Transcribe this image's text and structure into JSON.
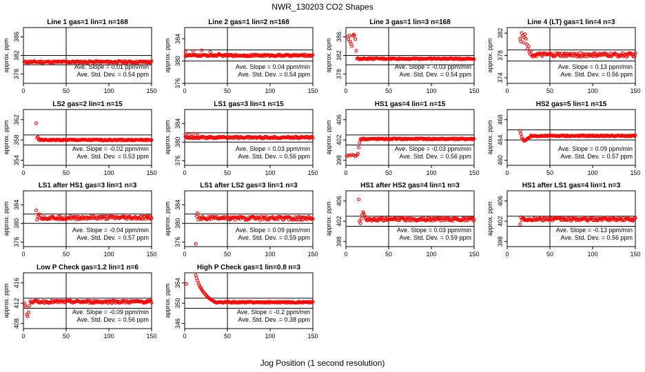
{
  "figure": {
    "title": "NWR_130203  CO2 Shapes",
    "xlabel": "Jog Position (1 second resolution)"
  },
  "style": {
    "marker_color": "#ff0000",
    "axis_color": "#000000"
  },
  "chart_data": [
    {
      "type": "scatter",
      "title": "Line 1 gas=1 lin=1 n=168",
      "ylabel": "approx. ppm",
      "xlim": [
        0,
        150
      ],
      "ylim": [
        376,
        388
      ],
      "yticks": [
        378,
        382,
        386
      ],
      "xticks": [
        0,
        50,
        100,
        150
      ],
      "hlines": [
        382,
        380
      ],
      "vline": 50,
      "slope": "Ave. Slope = 0.01 ppm/min",
      "std": "Ave. Std. Dev. = 0.54 ppm",
      "x_start": 1,
      "level": 380.6,
      "noise": 0.2,
      "transient": []
    },
    {
      "type": "scatter",
      "title": "Line 2 gas=1 lin=2 n=168",
      "ylabel": "approx. ppm",
      "xlim": [
        0,
        150
      ],
      "ylim": [
        376,
        386
      ],
      "yticks": [
        376,
        380,
        384
      ],
      "xticks": [
        0,
        50,
        100,
        150
      ],
      "hlines": [
        382,
        380
      ],
      "vline": 50,
      "slope": "Ave. Slope = 0.04 ppm/min",
      "std": "Ave. Std. Dev. = 0.54 ppm",
      "x_start": 1,
      "level": 381.0,
      "noise": 0.15,
      "transient": [
        [
          1,
          381.6
        ],
        [
          10,
          381.8
        ],
        [
          20,
          381.9
        ],
        [
          30,
          381.6
        ],
        [
          40,
          381.3
        ]
      ]
    },
    {
      "type": "scatter",
      "title": "Line 3 gas=1 lin=3 n=168",
      "ylabel": "approx. ppm",
      "xlim": [
        0,
        150
      ],
      "ylim": [
        376,
        388
      ],
      "yticks": [
        378,
        382,
        386
      ],
      "xticks": [
        0,
        50,
        100,
        150
      ],
      "hlines": [
        382,
        380
      ],
      "vline": 50,
      "slope": "Ave. Slope = -0.03 ppm/min",
      "std": "Ave. Std. Dev. = 0.54 ppm",
      "x_start": 13,
      "level": 381.3,
      "noise": 0.15,
      "transient": [
        [
          2,
          386
        ],
        [
          3,
          385.5
        ],
        [
          4,
          386.3
        ],
        [
          5,
          385
        ],
        [
          6,
          384.5
        ],
        [
          7,
          384
        ],
        [
          8,
          386.2
        ],
        [
          9,
          386.5
        ],
        [
          10,
          386.3
        ],
        [
          11,
          385.5
        ],
        [
          12,
          383
        ]
      ]
    },
    {
      "type": "scatter",
      "title": "Line 4 (LT) gas=1 lin=4 n=3",
      "ylabel": "approx. ppm",
      "xlim": [
        0,
        150
      ],
      "ylim": [
        373,
        383
      ],
      "yticks": [
        374,
        378,
        382
      ],
      "xticks": [
        0,
        50,
        100,
        150
      ],
      "hlines": [
        379,
        377
      ],
      "vline": 50,
      "slope": "Ave. Slope = 0.13 ppm/min",
      "std": "Ave. Std. Dev. = 0.56 ppm",
      "x_start": 30,
      "level": 378.1,
      "noise": 0.35,
      "transient": [
        [
          15,
          381
        ],
        [
          16,
          380.5
        ],
        [
          17,
          382
        ],
        [
          18,
          381.5
        ],
        [
          19,
          380.3
        ],
        [
          20,
          381.2
        ],
        [
          21,
          381.8
        ],
        [
          22,
          381
        ],
        [
          23,
          380
        ],
        [
          24,
          379.2
        ],
        [
          25,
          379.6
        ],
        [
          26,
          378.6
        ],
        [
          27,
          378.2
        ],
        [
          28,
          378.8
        ],
        [
          29,
          378
        ]
      ]
    },
    {
      "type": "scatter",
      "title": "LS2 gas=2 lin=1 n=15",
      "ylabel": "approx. ppm",
      "xlim": [
        0,
        150
      ],
      "ylim": [
        353,
        364
      ],
      "yticks": [
        354,
        358,
        362
      ],
      "xticks": [
        0,
        50,
        100,
        150
      ],
      "hlines": [
        359,
        357
      ],
      "vline": 50,
      "slope": "Ave. Slope = -0.02 ppm/min",
      "std": "Ave. Std. Dev. = 0.53 ppm",
      "x_start": 18,
      "level": 358.0,
      "noise": 0.12,
      "transient": [
        [
          15,
          361.3
        ],
        [
          16,
          358.4
        ],
        [
          17,
          358.6
        ]
      ]
    },
    {
      "type": "scatter",
      "title": "LS1 gas=3 lin=1 n=15",
      "ylabel": "approx. ppm",
      "xlim": [
        0,
        150
      ],
      "ylim": [
        375,
        387
      ],
      "yticks": [
        376,
        380,
        384
      ],
      "xticks": [
        0,
        50,
        100,
        150
      ],
      "hlines": [
        382,
        380
      ],
      "vline": 50,
      "slope": "Ave. Slope = 0.03 ppm/min",
      "std": "Ave. Std. Dev. = 0.56 ppm",
      "x_start": 1,
      "level": 381.0,
      "noise": 0.18,
      "transient": [
        [
          1,
          381.7
        ],
        [
          5,
          381.6
        ],
        [
          10,
          381.8
        ],
        [
          15,
          381.5
        ]
      ]
    },
    {
      "type": "scatter",
      "title": "HS1 gas=4 lin=1 n=15",
      "ylabel": "approx. ppm",
      "xlim": [
        0,
        150
      ],
      "ylim": [
        397,
        408
      ],
      "yticks": [
        398,
        402,
        406
      ],
      "xticks": [
        0,
        50,
        100,
        150
      ],
      "hlines": [
        403,
        401
      ],
      "vline": 50,
      "slope": "Ave. Slope = -0.03 ppm/min",
      "std": "Ave. Std. Dev. = 0.56 ppm",
      "x_start": 17,
      "level": 402.2,
      "noise": 0.12,
      "transient": [
        [
          1,
          398.8
        ],
        [
          3,
          399
        ],
        [
          5,
          398.9
        ],
        [
          7,
          399.1
        ],
        [
          9,
          399
        ],
        [
          11,
          398.8
        ],
        [
          13,
          399
        ],
        [
          14,
          399.3
        ],
        [
          15,
          400.5
        ],
        [
          16,
          401.5
        ]
      ]
    },
    {
      "type": "scatter",
      "title": "HS2 gas=5 lin=1 n=15",
      "ylabel": "approx. ppm",
      "xlim": [
        0,
        150
      ],
      "ylim": [
        459,
        470
      ],
      "yticks": [
        460,
        464,
        468
      ],
      "xticks": [
        0,
        50,
        100,
        150
      ],
      "hlines": [
        466,
        464
      ],
      "vline": 50,
      "slope": "Ave. Slope = 0.09 ppm/min",
      "std": "Ave. Std. Dev. = 0.57 ppm",
      "x_start": 28,
      "level": 464.8,
      "noise": 0.12,
      "transient": [
        [
          15,
          465.8
        ],
        [
          16,
          465.2
        ],
        [
          17,
          464.6
        ],
        [
          18,
          464.2
        ],
        [
          19,
          464
        ],
        [
          20,
          463.8
        ],
        [
          21,
          463.9
        ],
        [
          22,
          464
        ],
        [
          23,
          464.2
        ],
        [
          24,
          464.3
        ],
        [
          25,
          464.4
        ],
        [
          26,
          464.5
        ],
        [
          27,
          464.6
        ]
      ]
    },
    {
      "type": "scatter",
      "title": "LS1 after HS1 gas=3 lin=1 n=3",
      "ylabel": "approx. ppm",
      "xlim": [
        0,
        150
      ],
      "ylim": [
        375,
        387
      ],
      "yticks": [
        376,
        380,
        384
      ],
      "xticks": [
        0,
        50,
        100,
        150
      ],
      "hlines": [
        382,
        380
      ],
      "vline": 50,
      "slope": "Ave. Slope = -0.04 ppm/min",
      "std": "Ave. Std. Dev. = 0.57 ppm",
      "x_start": 22,
      "level": 381.2,
      "noise": 0.35,
      "transient": [
        [
          15,
          382.8
        ],
        [
          16,
          380.8
        ],
        [
          17,
          381.5
        ],
        [
          18,
          382
        ],
        [
          19,
          381.2
        ],
        [
          20,
          381.8
        ],
        [
          21,
          381
        ]
      ]
    },
    {
      "type": "scatter",
      "title": "LS1 after LS2 gas=3 lin=1 n=3",
      "ylabel": "approx. ppm",
      "xlim": [
        0,
        150
      ],
      "ylim": [
        375,
        387
      ],
      "yticks": [
        376,
        380,
        384
      ],
      "xticks": [
        0,
        50,
        100,
        150
      ],
      "hlines": [
        382,
        380
      ],
      "vline": 50,
      "slope": "Ave. Slope = 0.09 ppm/min",
      "std": "Ave. Std. Dev. = 0.59 ppm",
      "x_start": 17,
      "level": 381.1,
      "noise": 0.35,
      "transient": [
        [
          13,
          375.6
        ],
        [
          14,
          381.5
        ],
        [
          15,
          382.2
        ],
        [
          16,
          380.8
        ]
      ]
    },
    {
      "type": "scatter",
      "title": "HS1 after HS2 gas=4 lin=1 n=3",
      "ylabel": "approx. ppm",
      "xlim": [
        0,
        150
      ],
      "ylim": [
        397,
        408
      ],
      "yticks": [
        398,
        402,
        406
      ],
      "xticks": [
        0,
        50,
        100,
        150
      ],
      "hlines": [
        403,
        401
      ],
      "vline": 50,
      "slope": "Ave. Slope = 0.03 ppm/min",
      "std": "Ave. Std. Dev. = 0.59 ppm",
      "x_start": 24,
      "level": 402.4,
      "noise": 0.3,
      "transient": [
        [
          15,
          406.3
        ],
        [
          16,
          402
        ],
        [
          17,
          401.6
        ],
        [
          18,
          402.5
        ],
        [
          19,
          403.2
        ],
        [
          20,
          403.8
        ],
        [
          21,
          403.5
        ],
        [
          22,
          403
        ],
        [
          23,
          402.6
        ]
      ]
    },
    {
      "type": "scatter",
      "title": "HS1 after LS1 gas=4 lin=1 n=3",
      "ylabel": "approx. ppm",
      "xlim": [
        0,
        150
      ],
      "ylim": [
        397,
        408
      ],
      "yticks": [
        398,
        402,
        406
      ],
      "xticks": [
        0,
        50,
        100,
        150
      ],
      "hlines": [
        403,
        401
      ],
      "vline": 50,
      "slope": "Ave. Slope = -0.13 ppm/min",
      "std": "Ave. Std. Dev. = 0.56 ppm",
      "x_start": 19,
      "level": 402.4,
      "noise": 0.3,
      "transient": [
        [
          15,
          401.4
        ],
        [
          16,
          402.8
        ],
        [
          17,
          402.2
        ],
        [
          18,
          402.6
        ]
      ]
    },
    {
      "type": "scatter",
      "title": "Low P Check gas=1.2 lin=1 n=6",
      "ylabel": "approx. ppm",
      "xlim": [
        0,
        150
      ],
      "ylim": [
        407,
        418
      ],
      "yticks": [
        408,
        412,
        416
      ],
      "xticks": [
        0,
        50,
        100,
        150
      ],
      "hlines": [
        413,
        411
      ],
      "vline": 50,
      "slope": "Ave. Slope = -0.09 ppm/min",
      "std": "Ave. Std. Dev. = 0.56 ppm",
      "x_start": 9,
      "level": 412.3,
      "noise": 0.25,
      "transient": [
        [
          1,
          412
        ],
        [
          2,
          411.6
        ],
        [
          3,
          411.2
        ],
        [
          4,
          409.8
        ],
        [
          5,
          409.4
        ],
        [
          6,
          410.2
        ],
        [
          7,
          411.5
        ],
        [
          8,
          412.4
        ]
      ]
    },
    {
      "type": "scatter",
      "title": "High P Check gas=1 lin=0.8 n=3",
      "ylabel": "approx. ppm",
      "xlim": [
        0,
        150
      ],
      "ylim": [
        345,
        356
      ],
      "yticks": [
        346,
        350,
        354
      ],
      "xticks": [
        0,
        50,
        100,
        150
      ],
      "hlines": [
        351,
        349
      ],
      "vline": 50,
      "slope": "Ave. Slope = -0.2 ppm/min",
      "std": "Ave. Std. Dev. = 0.38 ppm",
      "x_start": 35,
      "level": 350.2,
      "noise": 0.12,
      "transient": [
        [
          2,
          353.8
        ],
        [
          13,
          355.5
        ],
        [
          14,
          355
        ],
        [
          15,
          354.5
        ],
        [
          16,
          354
        ],
        [
          17,
          353.6
        ],
        [
          18,
          353.2
        ],
        [
          19,
          353
        ],
        [
          20,
          352.7
        ],
        [
          21,
          352.4
        ],
        [
          22,
          352.2
        ],
        [
          23,
          352
        ],
        [
          24,
          351.8
        ],
        [
          25,
          351.6
        ],
        [
          26,
          351.4
        ],
        [
          27,
          351.2
        ],
        [
          28,
          351.1
        ],
        [
          29,
          350.9
        ],
        [
          30,
          350.8
        ],
        [
          31,
          350.7
        ],
        [
          32,
          350.6
        ],
        [
          33,
          350.5
        ],
        [
          34,
          350.4
        ]
      ]
    }
  ]
}
